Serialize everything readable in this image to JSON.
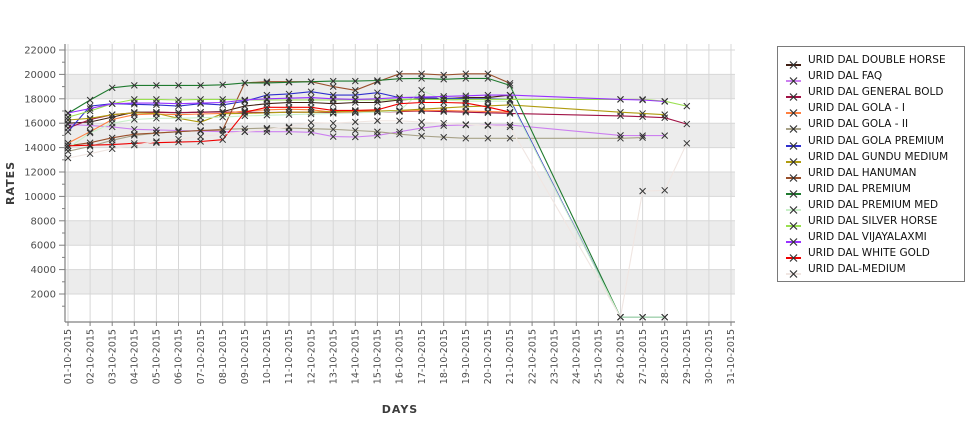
{
  "chart_data": {
    "type": "line",
    "title": "",
    "xlabel": "DAYS",
    "ylabel": "RATES",
    "x_categories": [
      "01-10-2015",
      "02-10-2015",
      "03-10-2015",
      "04-10-2015",
      "05-10-2015",
      "06-10-2015",
      "07-10-2015",
      "08-10-2015",
      "09-10-2015",
      "10-10-2015",
      "11-10-2015",
      "12-10-2015",
      "13-10-2015",
      "14-10-2015",
      "15-10-2015",
      "16-10-2015",
      "17-10-2015",
      "18-10-2015",
      "19-10-2015",
      "20-10-2015",
      "21-10-2015",
      "22-10-2015",
      "23-10-2015",
      "24-10-2015",
      "25-10-2015",
      "26-10-2015",
      "27-10-2015",
      "28-10-2015",
      "29-10-2015",
      "30-10-2015",
      "31-10-2015"
    ],
    "y_ticks": [
      2000,
      4000,
      6000,
      8000,
      10000,
      12000,
      14000,
      16000,
      18000,
      20000,
      22000
    ],
    "ylim": [
      -300,
      22600
    ],
    "grid": true,
    "legend_position": "right",
    "band_color": "#ececec",
    "grid_color": "#d7d7d7",
    "axis_color": "#808080",
    "tick_text_color": "#4d4d4d",
    "marker_color": "#333333",
    "series": [
      {
        "name": "URID DAL DOUBLE HORSE",
        "color": "#402015",
        "values": [
          16000,
          16100,
          16500,
          16900,
          16900,
          16850,
          16900,
          16950,
          17400,
          17600,
          17700,
          17700,
          17600,
          17700,
          17700,
          17900,
          18000,
          18000,
          18100,
          18100,
          18300,
          null,
          null,
          null,
          null,
          null,
          null,
          null,
          null,
          null,
          null
        ]
      },
      {
        "name": "URID DAL FAQ",
        "color": "#cc80f0",
        "values": [
          15900,
          15800,
          15700,
          15500,
          15450,
          15400,
          15350,
          15300,
          15300,
          15300,
          15300,
          15250,
          14900,
          14870,
          15000,
          15300,
          15600,
          15800,
          15850,
          15850,
          15850,
          null,
          null,
          null,
          null,
          15000,
          14980,
          14980,
          null,
          null,
          null
        ]
      },
      {
        "name": "URID DAL GENERAL BOLD",
        "color": "#a01245",
        "values": [
          15600,
          16300,
          16700,
          16850,
          16900,
          16880,
          16900,
          16920,
          16900,
          16880,
          16900,
          16900,
          16880,
          16900,
          16920,
          16950,
          17000,
          16950,
          16900,
          16850,
          16800,
          null,
          null,
          null,
          null,
          16600,
          16530,
          16450,
          15930,
          null,
          null
        ]
      },
      {
        "name": "URID DAL GOLA - I",
        "color": "#ff8040",
        "values": [
          14370,
          15300,
          16300,
          16700,
          16750,
          16700,
          16750,
          16800,
          17000,
          17100,
          17150,
          17100,
          16900,
          16950,
          17000,
          17000,
          17050,
          17050,
          17000,
          16950,
          16900,
          null,
          null,
          null,
          null,
          null,
          null,
          null,
          null,
          null,
          null
        ]
      },
      {
        "name": "URID DAL GOLA - II",
        "color": "#a8a288",
        "values": [
          13700,
          14100,
          14600,
          15000,
          15180,
          15300,
          15400,
          15500,
          15550,
          15600,
          15600,
          15550,
          15500,
          15400,
          15300,
          15100,
          14950,
          14850,
          14760,
          14760,
          14760,
          null,
          null,
          null,
          null,
          14760,
          14820,
          null,
          null,
          null,
          null
        ]
      },
      {
        "name": "URID DAL GOLA PREMIUM",
        "color": "#3030cc",
        "values": [
          15300,
          17400,
          17600,
          17550,
          17500,
          17400,
          17600,
          17500,
          17800,
          18300,
          18400,
          18580,
          18300,
          18300,
          18500,
          18100,
          18100,
          18050,
          18000,
          18000,
          17950,
          null,
          null,
          null,
          null,
          100,
          100,
          100,
          null,
          null,
          null
        ]
      },
      {
        "name": "URID DAL GUNDU MEDIUM",
        "color": "#b09c10",
        "values": [
          16260,
          16400,
          16700,
          16850,
          16800,
          16400,
          16080,
          16780,
          16800,
          16850,
          16900,
          16900,
          16950,
          17000,
          17000,
          17050,
          17150,
          17250,
          17350,
          17420,
          17500,
          null,
          null,
          null,
          null,
          16900,
          16800,
          16700,
          null,
          null,
          null
        ]
      },
      {
        "name": "URID DAL HANUMAN",
        "color": "#994f2b",
        "values": [
          14150,
          14400,
          14800,
          15100,
          15200,
          15300,
          15400,
          15450,
          19300,
          19400,
          19400,
          19400,
          19000,
          18700,
          19400,
          20050,
          20050,
          19950,
          20050,
          20050,
          19270,
          null,
          null,
          null,
          null,
          null,
          null,
          null,
          null,
          null,
          null
        ]
      },
      {
        "name": "URID DAL PREMIUM",
        "color": "#1f7a2f",
        "values": [
          16800,
          17900,
          18900,
          19100,
          19100,
          19100,
          19100,
          19150,
          19300,
          19300,
          19350,
          19400,
          19450,
          19450,
          19500,
          19650,
          19670,
          19600,
          19670,
          19670,
          19100,
          null,
          null,
          null,
          null,
          100,
          100,
          100,
          null,
          null,
          null
        ]
      },
      {
        "name": "URID DAL PREMIUM MED",
        "color": "#c8f0c8",
        "values": [
          13960,
          15200,
          16000,
          16300,
          16400,
          16400,
          16450,
          16500,
          16600,
          16650,
          16700,
          16750,
          16800,
          16850,
          16900,
          17000,
          18700,
          17900,
          17800,
          17800,
          17800,
          null,
          null,
          null,
          null,
          100,
          100,
          100,
          null,
          null,
          null
        ]
      },
      {
        "name": "URID DAL SILVER HORSE",
        "color": "#9ae050",
        "values": [
          16500,
          17000,
          17600,
          17950,
          17950,
          17900,
          17950,
          17950,
          17900,
          17900,
          17900,
          17900,
          17900,
          17900,
          17900,
          17950,
          17950,
          17950,
          17950,
          17950,
          17950,
          null,
          null,
          null,
          null,
          17950,
          17950,
          17800,
          17400,
          null,
          null
        ]
      },
      {
        "name": "URID DAL VIJAYALAXMI",
        "color": "#9933ff",
        "values": [
          16840,
          17200,
          17600,
          17650,
          17650,
          17600,
          17650,
          17700,
          17900,
          18000,
          18050,
          18100,
          18000,
          17950,
          18000,
          18100,
          18150,
          18200,
          18250,
          18300,
          18300,
          null,
          null,
          null,
          null,
          17950,
          17900,
          17780,
          null,
          null,
          null
        ]
      },
      {
        "name": "URID DAL WHITE GOLD",
        "color": "#ee0000",
        "values": [
          14150,
          14200,
          14250,
          14350,
          14400,
          14450,
          14500,
          14650,
          16900,
          17300,
          17300,
          17300,
          17050,
          17050,
          17100,
          17600,
          17700,
          17700,
          17650,
          17320,
          16910,
          null,
          null,
          null,
          null,
          null,
          null,
          null,
          null,
          null,
          null
        ]
      },
      {
        "name": "URID DAL-MEDIUM",
        "color": "#f0e6e2",
        "values": [
          13150,
          13500,
          13900,
          14200,
          14500,
          14700,
          14900,
          15100,
          15300,
          15500,
          15700,
          16050,
          16000,
          16100,
          16200,
          16200,
          16100,
          16000,
          15900,
          15800,
          15700,
          null,
          null,
          null,
          null,
          100,
          10430,
          10500,
          14350,
          null,
          null
        ]
      }
    ]
  }
}
